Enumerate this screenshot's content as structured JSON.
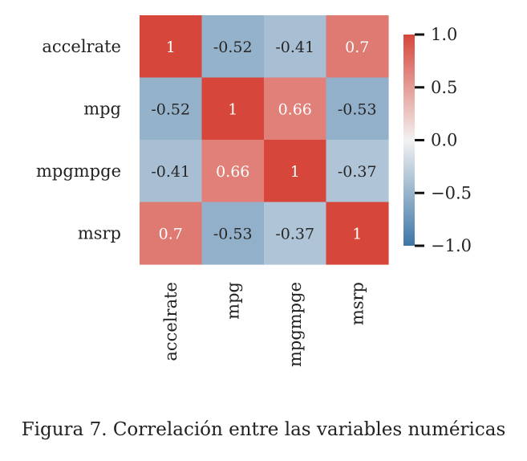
{
  "chart_data": {
    "type": "heatmap",
    "row_labels": [
      "accelrate",
      "mpg",
      "mpgmpge",
      "msrp"
    ],
    "col_labels": [
      "accelrate",
      "mpg",
      "mpgmpge",
      "msrp"
    ],
    "values": [
      [
        1,
        -0.52,
        -0.41,
        0.7
      ],
      [
        -0.52,
        1,
        0.66,
        -0.53
      ],
      [
        -0.41,
        0.66,
        1,
        -0.37
      ],
      [
        0.7,
        -0.53,
        -0.37,
        1
      ]
    ],
    "cell_labels": [
      [
        "1",
        "-0.52",
        "-0.41",
        "0.7"
      ],
      [
        "-0.52",
        "1",
        "0.66",
        "-0.53"
      ],
      [
        "-0.41",
        "0.66",
        "1",
        "-0.37"
      ],
      [
        "0.7",
        "-0.53",
        "-0.37",
        "1"
      ]
    ],
    "vmin": -1.0,
    "vmax": 1.0,
    "colorbar_ticks": [
      1.0,
      0.5,
      0.0,
      -0.5,
      -1.0
    ],
    "colorbar_tick_labels": [
      "1.0",
      "0.5",
      "0.0",
      "−0.5",
      "−1.0"
    ],
    "colormap": {
      "negative": "#3d76a6",
      "center": "#f2f2f2",
      "positive": "#d6463b"
    },
    "annotation_colors": {
      "light": "#ffffff",
      "dark": "#262626"
    }
  },
  "caption": "Figura 7. Correlación entre las variables numéricas"
}
